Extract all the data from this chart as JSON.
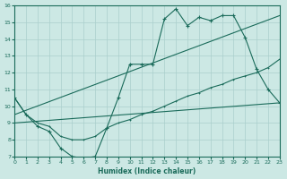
{
  "xlabel": "Humidex (Indice chaleur)",
  "background_color": "#cce8e4",
  "grid_color": "#aacfcc",
  "line_color": "#1a6b5a",
  "xlim": [
    0,
    23
  ],
  "ylim": [
    7,
    16
  ],
  "xticks": [
    0,
    1,
    2,
    3,
    4,
    5,
    6,
    7,
    8,
    9,
    10,
    11,
    12,
    13,
    14,
    15,
    16,
    17,
    18,
    19,
    20,
    21,
    22,
    23
  ],
  "yticks": [
    7,
    8,
    9,
    10,
    11,
    12,
    13,
    14,
    15,
    16
  ],
  "line1_x": [
    0,
    1,
    2,
    3,
    4,
    5,
    6,
    7,
    8,
    9,
    10,
    11,
    12,
    13,
    14,
    15,
    16,
    17,
    18,
    19,
    20,
    21,
    22,
    23
  ],
  "line1_y": [
    10.5,
    9.5,
    8.8,
    8.5,
    7.5,
    7.0,
    6.9,
    7.0,
    8.7,
    10.5,
    12.5,
    12.5,
    12.5,
    15.2,
    15.8,
    14.8,
    15.3,
    15.1,
    15.4,
    15.4,
    14.1,
    12.2,
    11.0,
    10.2
  ],
  "line2_x": [
    0,
    23
  ],
  "line2_y": [
    9.5,
    15.4
  ],
  "line3_x": [
    0,
    23
  ],
  "line3_y": [
    9.0,
    10.2
  ],
  "line4_x": [
    0,
    1,
    2,
    3,
    4,
    5,
    6,
    7,
    8,
    9,
    10,
    11,
    12,
    13,
    14,
    15,
    16,
    17,
    18,
    19,
    20,
    21,
    22,
    23
  ],
  "line4_y": [
    10.5,
    9.5,
    9.0,
    8.8,
    8.2,
    8.0,
    8.0,
    8.2,
    8.7,
    9.0,
    9.2,
    9.5,
    9.7,
    10.0,
    10.3,
    10.6,
    10.8,
    11.1,
    11.3,
    11.6,
    11.8,
    12.0,
    12.3,
    12.8
  ]
}
